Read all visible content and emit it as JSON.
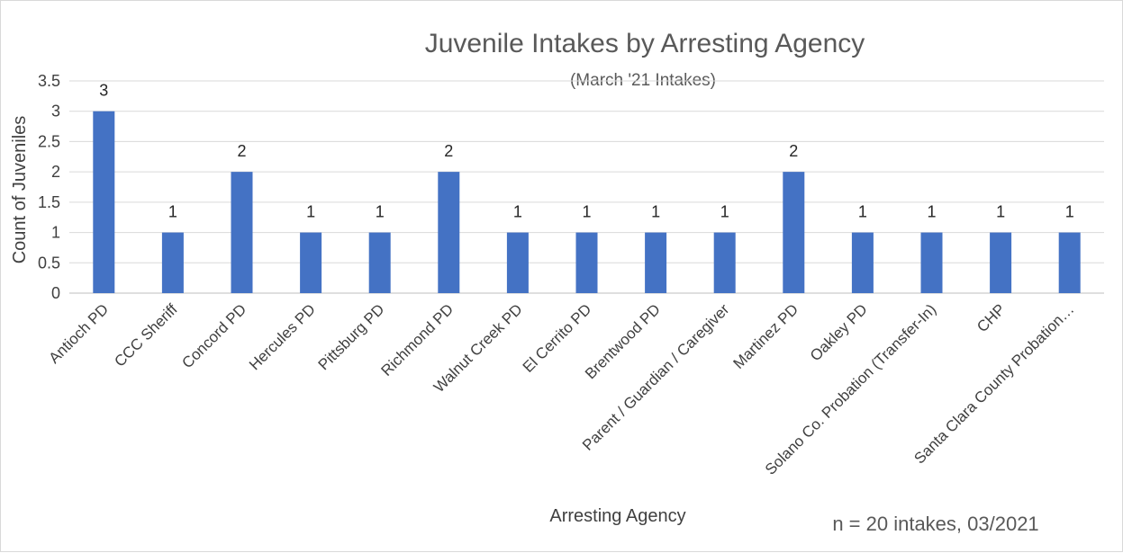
{
  "chart_data": {
    "type": "bar",
    "title": "Juvenile Intakes by Arresting Agency",
    "subtitle": "(March '21 Intakes)",
    "xlabel": "Arresting Agency",
    "ylabel": "Count of Juveniles",
    "ylim": [
      0,
      3.5
    ],
    "yticks": [
      "0",
      "0.5",
      "1",
      "1.5",
      "2",
      "2.5",
      "3",
      "3.5"
    ],
    "grid": true,
    "legend": "none",
    "bar_color": "#4472C4",
    "categories": [
      "Antioch PD",
      "CCC Sheriff",
      "Concord PD",
      "Hercules PD",
      "Pittsburg PD",
      "Richmond PD",
      "Walnut Creek PD",
      "El Cerrito PD",
      "Brentwood PD",
      "Parent / Guardian / Caregiver",
      "Martinez PD",
      "Oakley PD",
      "Solano Co. Probation (Transfer-In)",
      "CHP",
      "Santa Clara County Probation…"
    ],
    "values": [
      3,
      1,
      2,
      1,
      1,
      2,
      1,
      1,
      1,
      1,
      2,
      1,
      1,
      1,
      1
    ],
    "footnote": "n = 20 intakes, 03/2021"
  }
}
